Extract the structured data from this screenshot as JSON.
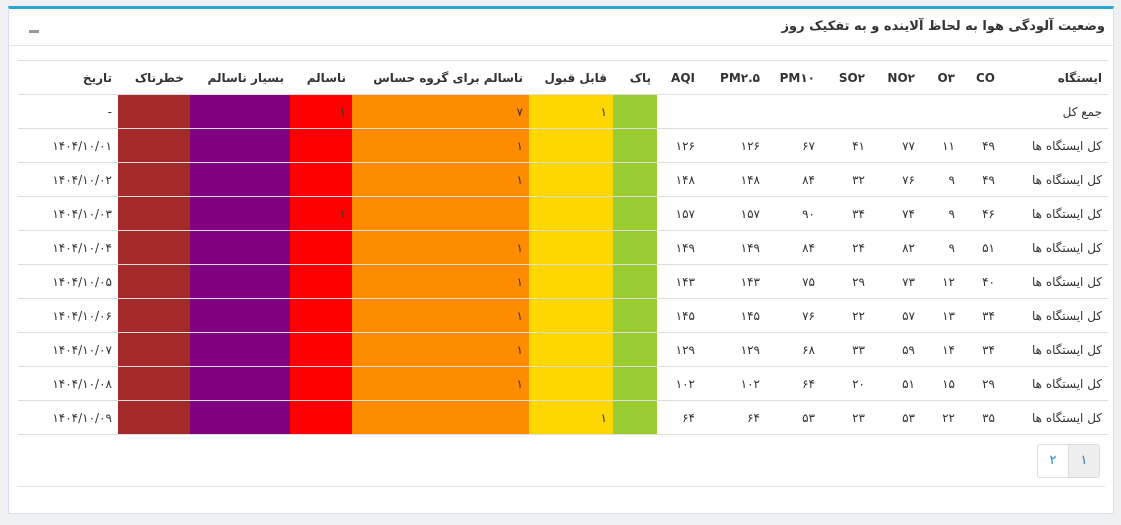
{
  "header": {
    "title": "وضعیت آلودگی هوا به لحاظ آلاینده و به تفکیک روز"
  },
  "table": {
    "header": [
      "ایستگاه",
      "CO",
      "O۳",
      "NO۲",
      "SO۲",
      "PM۱۰",
      "PM۲.۵",
      "AQI",
      "پاک",
      "قابل قبول",
      "ناسالم برای گروه حساس",
      "ناسالم",
      "بسیار ناسالم",
      "خطرناک",
      "تاریخ"
    ],
    "rows": [
      [
        "جمع کل",
        null,
        null,
        null,
        null,
        null,
        null,
        null,
        null,
        "۱",
        "۷",
        "۱",
        null,
        null,
        "-"
      ],
      [
        "کل ایستگاه ها",
        "۴۹",
        "۱۱",
        "۷۷",
        "۴۱",
        "۶۷",
        "۱۲۶",
        "۱۲۶",
        null,
        null,
        "۱",
        null,
        null,
        null,
        "۱۴۰۴/۱۰/۰۱"
      ],
      [
        "کل ایستگاه ها",
        "۴۹",
        "۹",
        "۷۶",
        "۳۲",
        "۸۴",
        "۱۴۸",
        "۱۴۸",
        null,
        null,
        "۱",
        null,
        null,
        null,
        "۱۴۰۴/۱۰/۰۲"
      ],
      [
        "کل ایستگاه ها",
        "۴۶",
        "۹",
        "۷۴",
        "۳۴",
        "۹۰",
        "۱۵۷",
        "۱۵۷",
        null,
        null,
        null,
        "۱",
        null,
        null,
        "۱۴۰۴/۱۰/۰۳"
      ],
      [
        "کل ایستگاه ها",
        "۵۱",
        "۹",
        "۸۲",
        "۲۴",
        "۸۴",
        "۱۴۹",
        "۱۴۹",
        null,
        null,
        "۱",
        null,
        null,
        null,
        "۱۴۰۴/۱۰/۰۴"
      ],
      [
        "کل ایستگاه ها",
        "۴۰",
        "۱۲",
        "۷۳",
        "۲۹",
        "۷۵",
        "۱۴۳",
        "۱۴۳",
        null,
        null,
        "۱",
        null,
        null,
        null,
        "۱۴۰۴/۱۰/۰۵"
      ],
      [
        "کل ایستگاه ها",
        "۳۴",
        "۱۳",
        "۵۷",
        "۲۲",
        "۷۶",
        "۱۴۵",
        "۱۴۵",
        null,
        null,
        "۱",
        null,
        null,
        null,
        "۱۴۰۴/۱۰/۰۶"
      ],
      [
        "کل ایستگاه ها",
        "۳۴",
        "۱۴",
        "۵۹",
        "۳۳",
        "۶۸",
        "۱۲۹",
        "۱۲۹",
        null,
        null,
        "۱",
        null,
        null,
        null,
        "۱۴۰۴/۱۰/۰۷"
      ],
      [
        "کل ایستگاه ها",
        "۲۹",
        "۱۵",
        "۵۱",
        "۲۰",
        "۶۴",
        "۱۰۲",
        "۱۰۲",
        null,
        null,
        "۱",
        null,
        null,
        null,
        "۱۴۰۴/۱۰/۰۸"
      ],
      [
        "کل ایستگاه ها",
        "۳۵",
        "۲۲",
        "۵۳",
        "۲۳",
        "۵۳",
        "۶۴",
        "۶۴",
        null,
        "۱",
        null,
        null,
        null,
        null,
        "۱۴۰۴/۱۰/۰۹"
      ]
    ]
  },
  "pagination": {
    "pages": [
      "۱",
      "۲"
    ]
  }
}
